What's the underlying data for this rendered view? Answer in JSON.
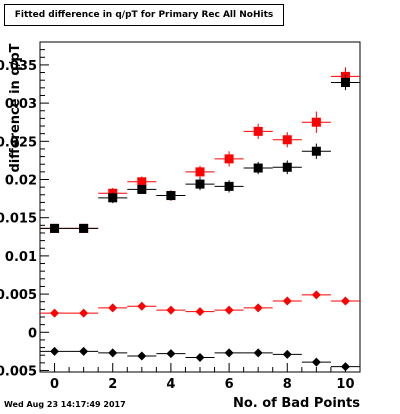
{
  "chart_data": {
    "type": "scatter",
    "title": "Fitted difference in q/pT for Primary Rec All NoHits",
    "xlabel": "No. of Bad Points",
    "ylabel": "difference in q/pT",
    "xlim": [
      -0.5,
      10.5
    ],
    "ylim": [
      -0.0052,
      0.038
    ],
    "x_ticks": [
      0,
      2,
      4,
      6,
      8,
      10
    ],
    "y_ticks": [
      -0.005,
      0,
      0.005,
      0.01,
      0.015,
      0.02,
      0.025,
      0.03,
      0.035
    ],
    "y_tick_labels": [
      "-0.005",
      "0",
      "0.005",
      "0.01",
      "0.015",
      "0.02",
      "0.025",
      "0.03",
      "0.035"
    ],
    "grid": false,
    "legend": "none",
    "series": [
      {
        "color": "#ff0000",
        "marker": "square",
        "x": [
          0,
          1,
          2,
          3,
          4,
          5,
          6,
          7,
          8,
          9,
          10
        ],
        "y": [
          0.0136,
          0.0136,
          0.0182,
          0.0197,
          0.0179,
          0.021,
          0.0227,
          0.0263,
          0.0252,
          0.0275,
          0.0335
        ],
        "yerr": [
          0.0002,
          0.0002,
          0.0007,
          0.0007,
          0.0007,
          0.0008,
          0.001,
          0.001,
          0.001,
          0.0014,
          0.0012
        ]
      },
      {
        "color": "#000000",
        "marker": "square",
        "x": [
          0,
          1,
          2,
          3,
          4,
          5,
          6,
          7,
          8,
          9,
          10
        ],
        "y": [
          0.0136,
          0.0136,
          0.0176,
          0.0187,
          0.0179,
          0.0194,
          0.0191,
          0.0215,
          0.0216,
          0.0237,
          0.0327
        ],
        "yerr": [
          0.0002,
          0.0002,
          0.0007,
          0.0006,
          0.0006,
          0.0008,
          0.0008,
          0.0008,
          0.0009,
          0.001,
          0.001
        ]
      },
      {
        "color": "#ff0000",
        "marker": "diamond",
        "x": [
          0,
          1,
          2,
          3,
          4,
          5,
          6,
          7,
          8,
          9,
          10
        ],
        "y": [
          0.0025,
          0.0025,
          0.0032,
          0.0034,
          0.0029,
          0.0027,
          0.0029,
          0.0032,
          0.0041,
          0.0049,
          0.0041
        ],
        "yerr": [
          0.0002,
          0.0002,
          0.0003,
          0.0003,
          0.0003,
          0.0003,
          0.0003,
          0.0003,
          0.0004,
          0.0004,
          0.0004
        ]
      },
      {
        "color": "#000000",
        "marker": "diamond",
        "x": [
          0,
          1,
          2,
          3,
          4,
          5,
          6,
          7,
          8,
          9,
          10
        ],
        "y": [
          -0.0025,
          -0.0025,
          -0.0027,
          -0.0031,
          -0.0028,
          -0.0033,
          -0.0027,
          -0.0027,
          -0.0029,
          -0.0039,
          -0.0045
        ],
        "yerr": [
          0.0002,
          0.0002,
          0.0003,
          0.0003,
          0.0003,
          0.0003,
          0.0003,
          0.0003,
          0.0003,
          0.0003,
          0.0004
        ]
      }
    ]
  },
  "footer": {
    "timestamp": "Wed Aug 23 14:17:49 2017"
  }
}
